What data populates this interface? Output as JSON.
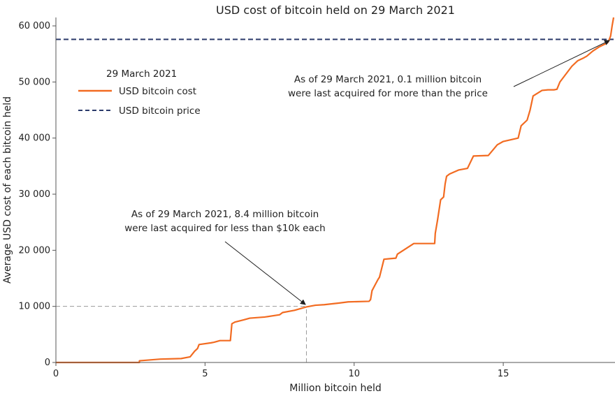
{
  "chart_data": {
    "type": "line",
    "title": "USD cost of bitcoin held on 29 March 2021",
    "xlabel": "Million bitcoin held",
    "ylabel": "Average USD cost of each bitcoin held",
    "xlim": [
      0,
      18.7
    ],
    "ylim": [
      0,
      61500
    ],
    "x_ticks": [
      0,
      5,
      10,
      15
    ],
    "x_tick_labels": [
      "0",
      "5",
      "10",
      "15"
    ],
    "y_ticks": [
      0,
      10000,
      20000,
      30000,
      40000,
      50000,
      60000
    ],
    "y_tick_labels": [
      "0",
      "10 000",
      "20 000",
      "30 000",
      "40 000",
      "50 000",
      "60 000"
    ],
    "grid": false,
    "legend": {
      "title": "29 March 2021",
      "position": "upper-left",
      "entries": [
        {
          "label": "USD bitcoin cost",
          "color": "#f26b21",
          "style": "solid"
        },
        {
          "label": "USD bitcoin price",
          "color": "#2b3a6b",
          "style": "dashed"
        }
      ]
    },
    "series": [
      {
        "name": "USD bitcoin cost",
        "color": "#f26b21",
        "x": [
          0,
          1.0,
          2.0,
          2.8,
          2.8,
          3.5,
          4.2,
          4.5,
          4.65,
          4.75,
          4.8,
          5.2,
          5.3,
          5.5,
          5.85,
          5.9,
          6.0,
          6.3,
          6.5,
          7.0,
          7.5,
          7.6,
          8.0,
          8.4,
          8.7,
          9.0,
          9.5,
          9.8,
          10.5,
          10.55,
          10.6,
          10.7,
          10.8,
          10.85,
          11.0,
          11.2,
          11.4,
          11.45,
          12.0,
          12.2,
          12.5,
          12.7,
          12.72,
          12.8,
          12.9,
          13.0,
          13.05,
          13.1,
          13.2,
          13.5,
          13.8,
          14.0,
          14.5,
          14.8,
          15.0,
          15.5,
          15.6,
          15.8,
          15.9,
          16.0,
          16.3,
          16.5,
          16.7,
          16.8,
          16.9,
          17.3,
          17.5,
          17.7,
          17.8,
          18.0,
          18.2,
          18.5,
          18.55,
          18.6,
          18.65,
          18.7
        ],
        "y": [
          0,
          0,
          0,
          0,
          300,
          600,
          700,
          1000,
          2000,
          2500,
          3200,
          3500,
          3600,
          3900,
          3900,
          6900,
          7200,
          7600,
          7900,
          8100,
          8500,
          8900,
          9300,
          9900,
          10200,
          10300,
          10600,
          10800,
          10900,
          11200,
          12800,
          13800,
          14800,
          15200,
          18400,
          18500,
          18600,
          19300,
          21200,
          21200,
          21200,
          21200,
          23000,
          25500,
          29000,
          29500,
          31800,
          33200,
          33600,
          34300,
          34600,
          36800,
          36900,
          38800,
          39400,
          40000,
          42200,
          43200,
          45000,
          47500,
          48500,
          48600,
          48600,
          48700,
          50000,
          52800,
          53800,
          54300,
          54600,
          55500,
          56200,
          57000,
          57500,
          58200,
          60000,
          61500
        ]
      },
      {
        "name": "USD bitcoin price",
        "color": "#2b3a6b",
        "style": "dashed",
        "x": [
          0,
          18.7
        ],
        "y": [
          57600,
          57600
        ]
      }
    ],
    "reference_lines": [
      {
        "orientation": "horizontal",
        "y": 10000,
        "x_from": 0,
        "x_to": 8.4,
        "color": "#9a9a9a"
      },
      {
        "orientation": "vertical",
        "x": 8.4,
        "y_from": 0,
        "y_to": 10000,
        "color": "#9a9a9a"
      }
    ],
    "annotations": [
      {
        "line1": "As of 29 March 2021, 8.4 million bitcoin",
        "line2": "were last acquired for less than $10k each",
        "target_x": 8.4,
        "target_y": 10000
      },
      {
        "line1": "As of 29 March 2021, 0.1 million bitcoin",
        "line2": "were last acquired for more than the price",
        "target_x": 18.55,
        "target_y": 57600
      }
    ]
  }
}
